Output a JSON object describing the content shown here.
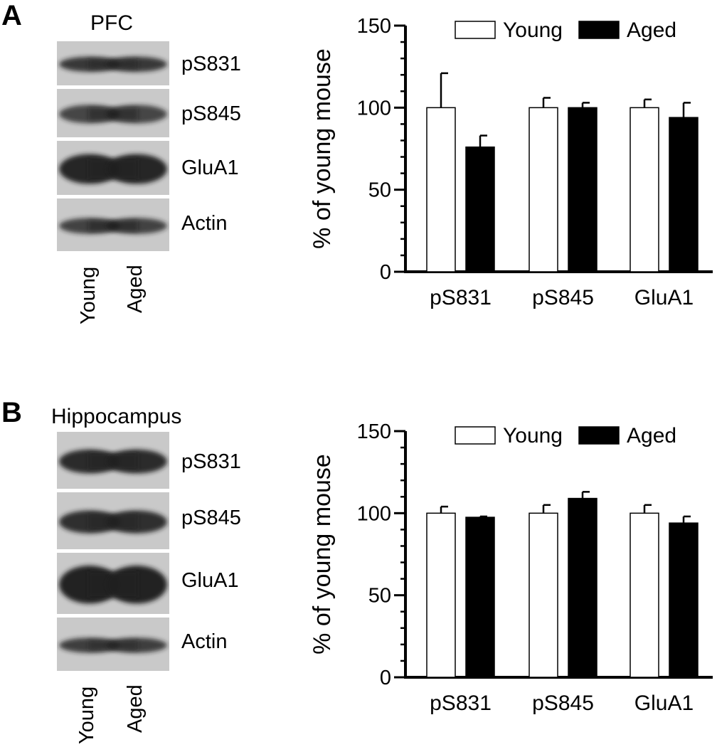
{
  "panel_a": {
    "letter": "A",
    "blot": {
      "title": "PFC",
      "bands": [
        {
          "label": "pS831"
        },
        {
          "label": "pS845"
        },
        {
          "label": "GluA1"
        },
        {
          "label": "Actin"
        }
      ],
      "lanes": [
        "Young",
        "Aged"
      ]
    }
  },
  "panel_b": {
    "letter": "B",
    "blot": {
      "title": "Hippocampus",
      "bands": [
        {
          "label": "pS831"
        },
        {
          "label": "pS845"
        },
        {
          "label": "GluA1"
        },
        {
          "label": "Actin"
        }
      ],
      "lanes": [
        "Young",
        "Aged"
      ]
    }
  },
  "colors": {
    "young_fill": "#ffffff",
    "aged_fill": "#000000",
    "axis": "#000000",
    "blot_bg": "#c9c9c9",
    "band_dark": "#1e1e1e"
  },
  "chart_data": [
    {
      "type": "bar",
      "panel": "A",
      "title": "",
      "xlabel": "",
      "ylabel": "% of young mouse",
      "ylim": [
        0,
        150
      ],
      "yticks": [
        0,
        50,
        100,
        150
      ],
      "categories": [
        "pS831",
        "pS845",
        "GluA1"
      ],
      "legend_position": "top",
      "series": [
        {
          "name": "Young",
          "color": "#ffffff",
          "values": [
            100,
            100,
            100
          ],
          "errors": [
            21,
            6,
            5
          ]
        },
        {
          "name": "Aged",
          "color": "#000000",
          "values": [
            76,
            100,
            94
          ],
          "errors": [
            7,
            3,
            9
          ]
        }
      ]
    },
    {
      "type": "bar",
      "panel": "B",
      "title": "",
      "xlabel": "",
      "ylabel": "% of young mouse",
      "ylim": [
        0,
        150
      ],
      "yticks": [
        0,
        50,
        100,
        150
      ],
      "categories": [
        "pS831",
        "pS845",
        "GluA1"
      ],
      "legend_position": "top",
      "series": [
        {
          "name": "Young",
          "color": "#ffffff",
          "values": [
            100,
            100,
            100
          ],
          "errors": [
            4,
            5,
            5
          ]
        },
        {
          "name": "Aged",
          "color": "#000000",
          "values": [
            97.5,
            109,
            94
          ],
          "errors": [
            0.5,
            4,
            4
          ]
        }
      ]
    }
  ]
}
